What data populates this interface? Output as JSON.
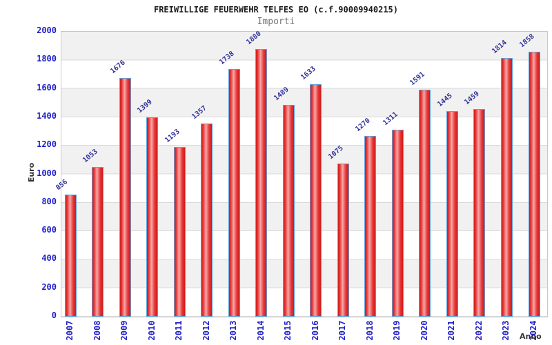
{
  "page": {
    "title": "FREIWILLIGE FEUERWEHR TELFES EO (c.f.90009940215)",
    "subtitle": "Importi"
  },
  "axes": {
    "y_label": "Euro",
    "x_label": "Anno"
  },
  "colors": {
    "title_text": "#1a1a1a",
    "subtitle_text": "#777777",
    "axis_text": "#2020cc",
    "value_text": "#333399",
    "label_text": "#333333",
    "bar_fill": "#e03030",
    "bar_fill_light": "#f5a8a8",
    "bar_border": "#64a0d8",
    "band": "#f1f1f1",
    "gridline": "#d9d9d9",
    "plot_border": "#c8c8c8"
  },
  "chart_data": {
    "type": "bar",
    "title": "FREIWILLIGE FEUERWEHR TELFES EO (c.f.90009940215)",
    "subtitle": "Importi",
    "xlabel": "Anno",
    "ylabel": "Euro",
    "categories": [
      "2007",
      "2008",
      "2009",
      "2010",
      "2011",
      "2012",
      "2013",
      "2014",
      "2015",
      "2016",
      "2017",
      "2018",
      "2019",
      "2020",
      "2021",
      "2022",
      "2023",
      "2024"
    ],
    "values": [
      856,
      1053,
      1676,
      1399,
      1193,
      1357,
      1738,
      1880,
      1489,
      1633,
      1075,
      1270,
      1311,
      1591,
      1445,
      1459,
      1814,
      1858
    ],
    "ylim": [
      0,
      2000
    ],
    "ytick_step": 200,
    "yticks": [
      0,
      200,
      400,
      600,
      800,
      1000,
      1200,
      1400,
      1600,
      1800,
      2000
    ],
    "grid": "horizontal gridlines with alternating gray/white 200-unit bands",
    "legend": "none",
    "bar_labels": "values shown rotated -40deg above each bar",
    "x_tick_rotation": -90
  }
}
